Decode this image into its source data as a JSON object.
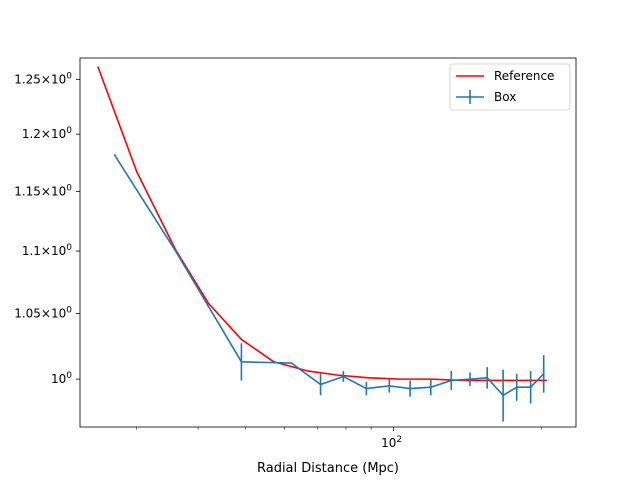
{
  "chart_data": {
    "type": "line",
    "xlabel": "Radial Distance (Mpc)",
    "ylabel": "",
    "x_scale": "log",
    "y_scale": "log",
    "xlim": [
      23,
      235
    ],
    "ylim": [
      0.965,
      1.27
    ],
    "x_ticks": [
      {
        "value": 100,
        "label": "10",
        "exp": "2"
      }
    ],
    "x_minor_ticks": [
      30,
      40,
      50,
      60,
      70,
      80,
      90,
      200
    ],
    "y_ticks": [
      {
        "value": 1.0,
        "label": "10",
        "mant": "",
        "exp": "0"
      },
      {
        "value": 1.05,
        "label": "10",
        "mant": "1.05",
        "exp": "0"
      },
      {
        "value": 1.1,
        "label": "10",
        "mant": "1.1",
        "exp": "0"
      },
      {
        "value": 1.15,
        "label": "10",
        "mant": "1.15",
        "exp": "0"
      },
      {
        "value": 1.2,
        "label": "10",
        "mant": "1.2",
        "exp": "0"
      },
      {
        "value": 1.25,
        "label": "10",
        "mant": "1.25",
        "exp": "0"
      }
    ],
    "legend_position": "top-right",
    "series": [
      {
        "name": "Reference",
        "color": "#ff0000",
        "x": [
          25,
          30,
          36,
          42,
          49,
          57,
          67,
          77,
          89,
          103,
          119,
          138,
          160,
          185,
          205
        ],
        "y": [
          1.262,
          1.167,
          1.101,
          1.058,
          1.03,
          1.013,
          1.006,
          1.003,
          1.001,
          1.0,
          1.0,
          0.999,
          0.999,
          0.999,
          0.999
        ]
      },
      {
        "name": "Box",
        "color": "#1f77b4",
        "x": [
          27,
          36,
          49,
          62,
          71,
          79,
          88,
          98,
          108,
          119,
          131,
          143,
          155,
          167,
          178,
          190,
          202
        ],
        "y": [
          1.182,
          1.1,
          1.013,
          1.012,
          0.996,
          1.002,
          0.993,
          0.995,
          0.993,
          0.994,
          0.999,
          1.0,
          1.001,
          0.988,
          0.994,
          0.994,
          1.004
        ],
        "yerr": [
          0,
          0,
          0.014,
          0,
          0.008,
          0.004,
          0.005,
          0.005,
          0.006,
          0.006,
          0.007,
          0.005,
          0.008,
          0.019,
          0.01,
          0.012,
          0.014
        ]
      }
    ]
  }
}
